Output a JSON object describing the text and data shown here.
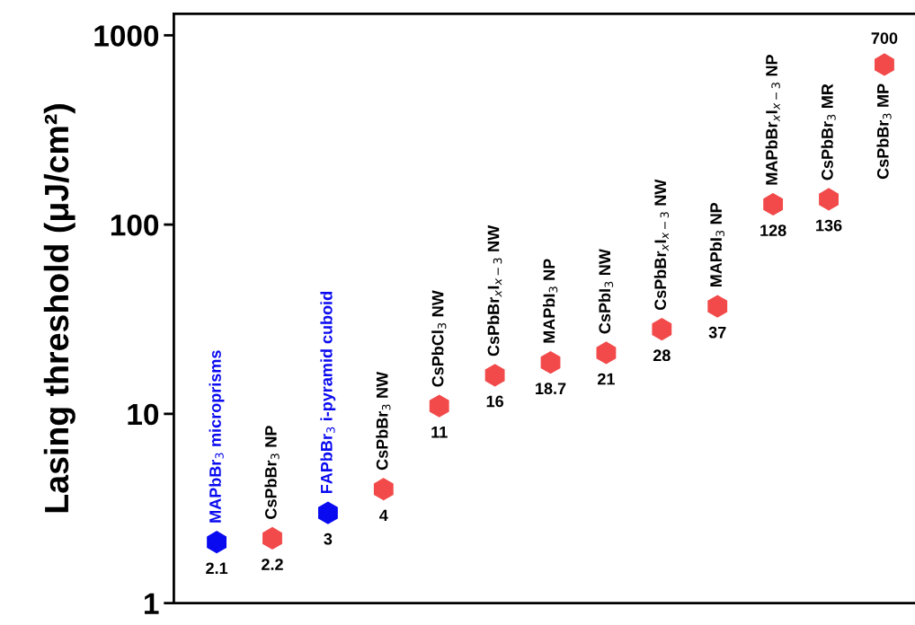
{
  "chart_data": {
    "type": "scatter",
    "ylabel": "Lasing threshold (μJ/cm²)",
    "categories": [
      "MAPbBr$_{3}$ microprisms",
      "CsPbBr$_{3}$ NP",
      "FAPbBr$_{3}$ i-pyramid cuboid",
      "CsPbBr$_{3}$ NW",
      "CsPbCl$_{3}$ NW",
      "CsPbBr$_{x}$I$_{x−3}$ NW",
      "MAPbI$_{3}$ NP",
      "CsPbI$_{3}$ NW",
      "CsPbBr$_{x}$I$_{x−3}$ NW",
      "MAPbI$_{3}$ NP",
      "MAPbBr$_{x}$I$_{x−3}$ NP",
      "CsPbBr$_{3}$ MR",
      "CsPbBr$_{3}$ MP"
    ],
    "series": [
      {
        "color": "#0a0af0",
        "values": [
          2.1,
          null,
          3,
          null,
          null,
          null,
          null,
          null,
          null,
          null,
          null,
          null,
          null
        ]
      },
      {
        "color": "#f24a4a",
        "values": [
          null,
          2.2,
          null,
          4,
          11,
          16,
          18.7,
          21,
          28,
          37,
          128,
          136,
          700
        ]
      }
    ],
    "log": true,
    "ylim": [
      1,
      1300
    ],
    "yticks": [
      1,
      10,
      100,
      1000
    ],
    "grid": false,
    "data_labels": true
  }
}
